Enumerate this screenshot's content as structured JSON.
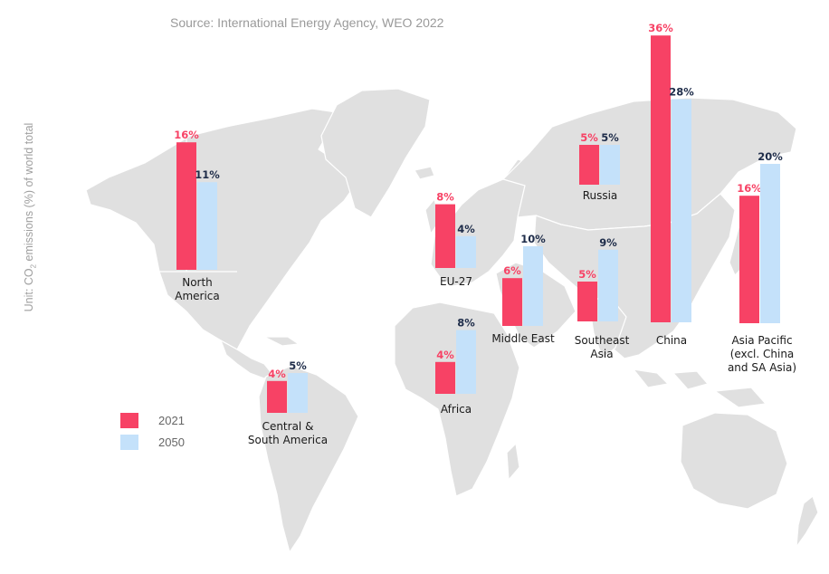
{
  "source": "Source: International Energy Agency, WEO 2022",
  "y_label": {
    "prefix": "Unit: CO",
    "subscript": "2",
    "suffix": " emissions (%) of world total"
  },
  "colors": {
    "y2021": "#f74265",
    "y2050": "#c4e1fa",
    "map": "#e0e0e0",
    "label2021": "#f74265",
    "label2050": "#1f2d4a"
  },
  "legend": [
    {
      "label": "2021",
      "color": "#f74265"
    },
    {
      "label": "2050",
      "color": "#c4e1fa"
    }
  ],
  "chart_data": {
    "type": "bar",
    "title": "",
    "series": [
      {
        "name": "2021",
        "values": [
          16,
          4,
          8,
          4,
          6,
          5,
          5,
          36,
          16
        ]
      },
      {
        "name": "2050",
        "values": [
          11,
          5,
          4,
          8,
          10,
          5,
          9,
          28,
          20
        ]
      }
    ],
    "categories": [
      "North America",
      "Central & South America",
      "EU-27",
      "Africa",
      "Middle East",
      "Russia",
      "Southeast Asia",
      "China",
      "Asia Pacific (excl. China and SA Asia)"
    ],
    "category_lines": [
      [
        "North",
        "America"
      ],
      [
        "Central &",
        "South America"
      ],
      [
        "EU-27"
      ],
      [
        "Africa"
      ],
      [
        "Middle East"
      ],
      [
        "Russia"
      ],
      [
        "Southeast",
        "Asia"
      ],
      [
        "China"
      ],
      [
        "Asia Pacific",
        "(excl. China",
        "and SA Asia)"
      ]
    ],
    "value_labels": [
      [
        "16%",
        "11%"
      ],
      [
        "4%",
        "5%"
      ],
      [
        "8%",
        "4%"
      ],
      [
        "4%",
        "8%"
      ],
      [
        "6%",
        "10%"
      ],
      [
        "5%",
        "5%"
      ],
      [
        "5%",
        "9%"
      ],
      [
        "36%",
        "28%"
      ],
      [
        "16%",
        "20%"
      ]
    ],
    "unit": "%"
  }
}
